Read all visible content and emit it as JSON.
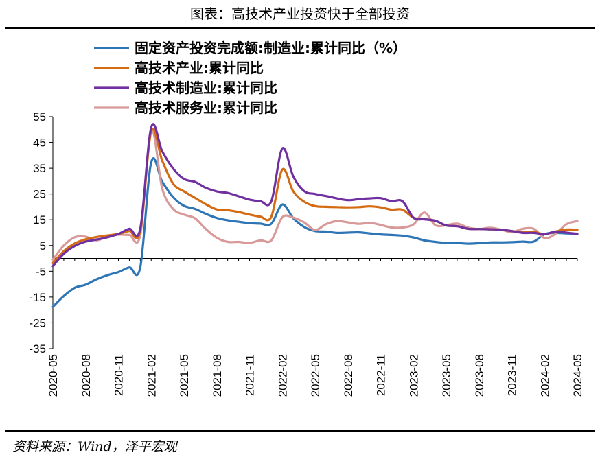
{
  "header": {
    "title": "图表：高技术产业投资快于全部投资"
  },
  "footer": {
    "source": "资料来源：Wind，泽平宏观"
  },
  "chart_data": {
    "type": "line",
    "ylim": [
      -35,
      55
    ],
    "yticks": [
      55,
      45,
      35,
      25,
      15,
      5,
      -5,
      -15,
      -25,
      -35
    ],
    "xlim": [
      "2020-05",
      "2024-05"
    ],
    "xtick_labels": [
      "2020-05",
      "2020-08",
      "2020-11",
      "2021-02",
      "2021-05",
      "2021-08",
      "2021-11",
      "2022-02",
      "2022-05",
      "2022-08",
      "2022-11",
      "2023-02",
      "2023-05",
      "2023-08",
      "2023-11",
      "2024-02",
      "2024-05"
    ],
    "grid": false,
    "legend": "top",
    "series": [
      {
        "name": "固定资产投资完成额:制造业:累计同比（%）",
        "color": "#2E75B6",
        "points": [
          [
            "2020-05",
            -18.8
          ],
          [
            "2020-06",
            -14.6
          ],
          [
            "2020-07",
            -11.4
          ],
          [
            "2020-08",
            -10.2
          ],
          [
            "2020-09",
            -8.1
          ],
          [
            "2020-10",
            -6.5
          ],
          [
            "2020-11",
            -5.3
          ],
          [
            "2020-12",
            -3.5
          ],
          [
            "2021-01",
            -3.5
          ],
          [
            "2021-02",
            37.3
          ],
          [
            "2021-03",
            29.8
          ],
          [
            "2021-04",
            23.8
          ],
          [
            "2021-05",
            20.4
          ],
          [
            "2021-06",
            19.2
          ],
          [
            "2021-07",
            17.3
          ],
          [
            "2021-08",
            15.7
          ],
          [
            "2021-09",
            14.8
          ],
          [
            "2021-10",
            14.2
          ],
          [
            "2021-11",
            13.7
          ],
          [
            "2021-12",
            13.5
          ],
          [
            "2022-01",
            13.5
          ],
          [
            "2022-02",
            20.9
          ],
          [
            "2022-03",
            15.6
          ],
          [
            "2022-04",
            12.2
          ],
          [
            "2022-05",
            10.6
          ],
          [
            "2022-06",
            10.4
          ],
          [
            "2022-07",
            9.9
          ],
          [
            "2022-08",
            10.0
          ],
          [
            "2022-09",
            10.1
          ],
          [
            "2022-10",
            9.7
          ],
          [
            "2022-11",
            9.3
          ],
          [
            "2022-12",
            9.1
          ],
          [
            "2023-01",
            8.8
          ],
          [
            "2023-02",
            8.1
          ],
          [
            "2023-03",
            7.0
          ],
          [
            "2023-04",
            6.4
          ],
          [
            "2023-05",
            6.0
          ],
          [
            "2023-06",
            6.0
          ],
          [
            "2023-07",
            5.7
          ],
          [
            "2023-08",
            5.9
          ],
          [
            "2023-09",
            6.2
          ],
          [
            "2023-10",
            6.2
          ],
          [
            "2023-11",
            6.3
          ],
          [
            "2023-12",
            6.5
          ],
          [
            "2024-01",
            6.5
          ],
          [
            "2024-02",
            9.4
          ],
          [
            "2024-03",
            9.9
          ],
          [
            "2024-04",
            9.7
          ],
          [
            "2024-05",
            9.6
          ]
        ]
      },
      {
        "name": "高技术产业:累计同比",
        "color": "#D46B12",
        "points": [
          [
            "2020-05",
            -1.8
          ],
          [
            "2020-06",
            2.8
          ],
          [
            "2020-07",
            5.8
          ],
          [
            "2020-08",
            7.4
          ],
          [
            "2020-09",
            8.3
          ],
          [
            "2020-10",
            8.9
          ],
          [
            "2020-11",
            9.5
          ],
          [
            "2020-12",
            10.6
          ],
          [
            "2021-01",
            10.6
          ],
          [
            "2021-02",
            49.3
          ],
          [
            "2021-03",
            38.0
          ],
          [
            "2021-04",
            29.0
          ],
          [
            "2021-05",
            26.0
          ],
          [
            "2021-06",
            23.5
          ],
          [
            "2021-07",
            21.0
          ],
          [
            "2021-08",
            19.0
          ],
          [
            "2021-09",
            18.7
          ],
          [
            "2021-10",
            18.0
          ],
          [
            "2021-11",
            17.0
          ],
          [
            "2021-12",
            16.2
          ],
          [
            "2022-01",
            16.2
          ],
          [
            "2022-02",
            34.5
          ],
          [
            "2022-03",
            26.0
          ],
          [
            "2022-04",
            22.0
          ],
          [
            "2022-05",
            20.3
          ],
          [
            "2022-06",
            20.0
          ],
          [
            "2022-07",
            19.9
          ],
          [
            "2022-08",
            19.8
          ],
          [
            "2022-09",
            19.9
          ],
          [
            "2022-10",
            20.2
          ],
          [
            "2022-11",
            19.8
          ],
          [
            "2022-12",
            18.9
          ],
          [
            "2023-01",
            18.9
          ],
          [
            "2023-02",
            15.8
          ],
          [
            "2023-03",
            15.2
          ],
          [
            "2023-04",
            14.6
          ],
          [
            "2023-05",
            12.8
          ],
          [
            "2023-06",
            12.5
          ],
          [
            "2023-07",
            11.5
          ],
          [
            "2023-08",
            11.4
          ],
          [
            "2023-09",
            11.3
          ],
          [
            "2023-10",
            11.1
          ],
          [
            "2023-11",
            10.6
          ],
          [
            "2023-12",
            10.3
          ],
          [
            "2024-01",
            10.3
          ],
          [
            "2024-02",
            9.4
          ],
          [
            "2024-03",
            10.4
          ],
          [
            "2024-04",
            11.2
          ],
          [
            "2024-05",
            11.1
          ]
        ]
      },
      {
        "name": "高技术制造业:累计同比",
        "color": "#7030A0",
        "points": [
          [
            "2020-05",
            -3.0
          ],
          [
            "2020-06",
            1.8
          ],
          [
            "2020-07",
            4.8
          ],
          [
            "2020-08",
            6.5
          ],
          [
            "2020-09",
            7.3
          ],
          [
            "2020-10",
            8.2
          ],
          [
            "2020-11",
            9.5
          ],
          [
            "2020-12",
            11.5
          ],
          [
            "2021-01",
            11.5
          ],
          [
            "2021-02",
            50.9
          ],
          [
            "2021-03",
            41.6
          ],
          [
            "2021-04",
            34.9
          ],
          [
            "2021-05",
            30.8
          ],
          [
            "2021-06",
            29.7
          ],
          [
            "2021-07",
            27.4
          ],
          [
            "2021-08",
            26.0
          ],
          [
            "2021-09",
            25.4
          ],
          [
            "2021-10",
            24.1
          ],
          [
            "2021-11",
            22.8
          ],
          [
            "2021-12",
            22.2
          ],
          [
            "2022-01",
            22.2
          ],
          [
            "2022-02",
            42.7
          ],
          [
            "2022-03",
            31.8
          ],
          [
            "2022-04",
            26.1
          ],
          [
            "2022-05",
            25.0
          ],
          [
            "2022-06",
            24.2
          ],
          [
            "2022-07",
            23.3
          ],
          [
            "2022-08",
            22.6
          ],
          [
            "2022-09",
            23.0
          ],
          [
            "2022-10",
            23.3
          ],
          [
            "2022-11",
            23.4
          ],
          [
            "2022-12",
            22.2
          ],
          [
            "2023-01",
            22.2
          ],
          [
            "2023-02",
            15.8
          ],
          [
            "2023-03",
            15.2
          ],
          [
            "2023-04",
            14.6
          ],
          [
            "2023-05",
            12.8
          ],
          [
            "2023-06",
            12.5
          ],
          [
            "2023-07",
            11.5
          ],
          [
            "2023-08",
            11.4
          ],
          [
            "2023-09",
            11.3
          ],
          [
            "2023-10",
            11.1
          ],
          [
            "2023-11",
            10.6
          ],
          [
            "2023-12",
            9.9
          ],
          [
            "2024-01",
            9.9
          ],
          [
            "2024-02",
            9.4
          ],
          [
            "2024-03",
            10.4
          ],
          [
            "2024-04",
            10.0
          ],
          [
            "2024-05",
            9.5
          ]
        ]
      },
      {
        "name": "高技术服务业:累计同比",
        "color": "#D89999",
        "points": [
          [
            "2020-05",
            -0.5
          ],
          [
            "2020-06",
            5.0
          ],
          [
            "2020-07",
            8.2
          ],
          [
            "2020-08",
            8.4
          ],
          [
            "2020-09",
            7.0
          ],
          [
            "2020-10",
            8.5
          ],
          [
            "2020-11",
            9.2
          ],
          [
            "2020-12",
            9.1
          ],
          [
            "2021-01",
            9.1
          ],
          [
            "2021-02",
            49.6
          ],
          [
            "2021-03",
            27.2
          ],
          [
            "2021-04",
            19.2
          ],
          [
            "2021-05",
            17.0
          ],
          [
            "2021-06",
            15.6
          ],
          [
            "2021-07",
            11.4
          ],
          [
            "2021-08",
            8.0
          ],
          [
            "2021-09",
            6.4
          ],
          [
            "2021-10",
            6.4
          ],
          [
            "2021-11",
            6.0
          ],
          [
            "2021-12",
            7.0
          ],
          [
            "2022-01",
            7.0
          ],
          [
            "2022-02",
            16.0
          ],
          [
            "2022-03",
            15.8
          ],
          [
            "2022-04",
            14.0
          ],
          [
            "2022-05",
            11.0
          ],
          [
            "2022-06",
            13.3
          ],
          [
            "2022-07",
            14.5
          ],
          [
            "2022-08",
            14.0
          ],
          [
            "2022-09",
            13.4
          ],
          [
            "2022-10",
            13.8
          ],
          [
            "2022-11",
            13.0
          ],
          [
            "2022-12",
            12.0
          ],
          [
            "2023-01",
            12.0
          ],
          [
            "2023-02",
            13.2
          ],
          [
            "2023-03",
            17.8
          ],
          [
            "2023-04",
            12.9
          ],
          [
            "2023-05",
            12.9
          ],
          [
            "2023-06",
            13.5
          ],
          [
            "2023-07",
            12.0
          ],
          [
            "2023-08",
            11.4
          ],
          [
            "2023-09",
            11.9
          ],
          [
            "2023-10",
            11.2
          ],
          [
            "2023-11",
            10.2
          ],
          [
            "2023-12",
            11.5
          ],
          [
            "2024-01",
            11.5
          ],
          [
            "2024-02",
            7.9
          ],
          [
            "2024-03",
            9.5
          ],
          [
            "2024-04",
            13.3
          ],
          [
            "2024-05",
            14.5
          ]
        ]
      }
    ]
  }
}
